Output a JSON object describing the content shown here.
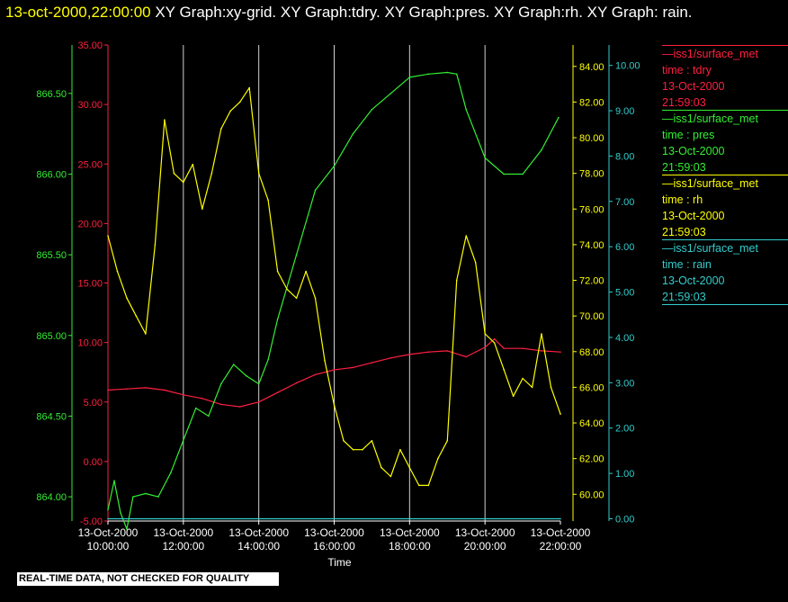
{
  "header": {
    "timestamp": "13-oct-2000,22:00:00",
    "graphs": "  XY Graph:xy-grid.  XY Graph:tdry.  XY Graph:pres.  XY Graph:rh.  XY Graph: rain."
  },
  "notice": "REAL-TIME DATA, NOT CHECKED FOR QUALITY",
  "legend": [
    {
      "line1": "—iss1/surface_met",
      "line2": "time : tdry",
      "line3": "13-Oct-2000",
      "line4": "21:59:03",
      "color": "#ff2040"
    },
    {
      "line1": "—iss1/surface_met",
      "line2": "time : pres",
      "line3": "13-Oct-2000",
      "line4": "21:59:03",
      "color": "#33ee33"
    },
    {
      "line1": "—iss1/surface_met",
      "line2": "time : rh",
      "line3": "13-Oct-2000",
      "line4": "21:59:03",
      "color": "#ffff00"
    },
    {
      "line1": "—iss1/surface_met",
      "line2": "time : rain",
      "line3": "13-Oct-2000",
      "line4": "21:59:03",
      "color": "#33cccc"
    }
  ],
  "chart_data": {
    "type": "line",
    "xlabel": "Time",
    "x_ticks": [
      {
        "d": "13-Oct-2000",
        "t": "10:00:00"
      },
      {
        "d": "13-Oct-2000",
        "t": "12:00:00"
      },
      {
        "d": "13-Oct-2000",
        "t": "14:00:00"
      },
      {
        "d": "13-Oct-2000",
        "t": "16:00:00"
      },
      {
        "d": "13-Oct-2000",
        "t": "18:00:00"
      },
      {
        "d": "13-Oct-2000",
        "t": "20:00:00"
      },
      {
        "d": "13-Oct-2000",
        "t": "22:00:00"
      }
    ],
    "xlim": [
      "2000-10-13 10:00:00",
      "2000-10-13 22:00:00"
    ],
    "grid": "vertical lines at x ticks",
    "axes": {
      "tdry": {
        "color": "#ff2040",
        "ylim": [
          -5,
          35
        ],
        "ticks": [
          "-5.00",
          "0.00",
          "5.00",
          "10.00",
          "15.00",
          "20.00",
          "25.00",
          "30.00",
          "35.00"
        ]
      },
      "pres": {
        "color": "#33ee33",
        "ylim": [
          863.85,
          866.8
        ],
        "ticks": [
          "864.00",
          "864.50",
          "865.00",
          "865.50",
          "866.00",
          "866.50"
        ]
      },
      "rh": {
        "color": "#ffff00",
        "ylim": [
          58.5,
          85.2
        ],
        "ticks": [
          "60.00",
          "62.00",
          "64.00",
          "66.00",
          "68.00",
          "70.00",
          "72.00",
          "74.00",
          "76.00",
          "78.00",
          "80.00",
          "82.00",
          "84.00"
        ]
      },
      "rain": {
        "color": "#33cccc",
        "ylim": [
          -0.05,
          10.45
        ],
        "ticks": [
          "0.00",
          "1.00",
          "2.00",
          "3.00",
          "4.00",
          "5.00",
          "6.00",
          "7.00",
          "8.00",
          "9.00",
          "10.00"
        ]
      }
    },
    "series": [
      {
        "name": "tdry",
        "color": "#ff2040",
        "x": [
          "10:00",
          "10:30",
          "11:00",
          "11:30",
          "12:00",
          "12:30",
          "13:00",
          "13:30",
          "14:00",
          "14:30",
          "15:00",
          "15:30",
          "16:00",
          "16:30",
          "17:00",
          "17:30",
          "18:00",
          "18:30",
          "19:00",
          "19:30",
          "20:00",
          "20:15",
          "20:30",
          "21:00",
          "21:30",
          "22:00"
        ],
        "values": [
          6.0,
          6.1,
          6.2,
          6.0,
          5.6,
          5.3,
          4.8,
          4.6,
          5.0,
          5.8,
          6.6,
          7.3,
          7.7,
          7.9,
          8.3,
          8.7,
          9.0,
          9.2,
          9.3,
          8.8,
          9.6,
          10.3,
          9.5,
          9.5,
          9.3,
          9.2
        ]
      },
      {
        "name": "pres",
        "color": "#33ee33",
        "x": [
          "10:00",
          "10:10",
          "10:20",
          "10:30",
          "10:40",
          "11:00",
          "11:20",
          "11:40",
          "12:00",
          "12:20",
          "12:40",
          "13:00",
          "13:20",
          "13:40",
          "14:00",
          "14:15",
          "14:30",
          "15:00",
          "15:30",
          "16:00",
          "16:30",
          "17:00",
          "17:30",
          "18:00",
          "18:30",
          "19:00",
          "19:15",
          "19:30",
          "20:00",
          "20:30",
          "21:00",
          "21:30",
          "21:57"
        ],
        "values": [
          863.92,
          864.1,
          863.9,
          863.8,
          864.0,
          864.02,
          864.0,
          864.15,
          864.35,
          864.55,
          864.5,
          864.7,
          864.82,
          864.75,
          864.7,
          864.85,
          865.1,
          865.5,
          865.9,
          866.05,
          866.25,
          866.4,
          866.5,
          866.6,
          866.62,
          866.63,
          866.62,
          866.4,
          866.1,
          866.0,
          866.0,
          866.15,
          866.35
        ]
      },
      {
        "name": "rh",
        "color": "#ffff00",
        "x": [
          "10:00",
          "10:15",
          "10:30",
          "10:45",
          "11:00",
          "11:15",
          "11:30",
          "11:45",
          "12:00",
          "12:15",
          "12:30",
          "12:45",
          "13:00",
          "13:15",
          "13:30",
          "13:45",
          "14:00",
          "14:15",
          "14:30",
          "14:45",
          "15:00",
          "15:15",
          "15:30",
          "15:45",
          "16:00",
          "16:15",
          "16:30",
          "16:45",
          "17:00",
          "17:15",
          "17:30",
          "17:45",
          "18:00",
          "18:15",
          "18:30",
          "18:45",
          "19:00",
          "19:15",
          "19:30",
          "19:45",
          "20:00",
          "20:15",
          "20:30",
          "20:45",
          "21:00",
          "21:15",
          "21:30",
          "21:45",
          "22:00"
        ],
        "values": [
          74.5,
          72.5,
          71.0,
          70.0,
          69.0,
          74.0,
          81.0,
          78.0,
          77.5,
          78.5,
          76.0,
          78.0,
          80.5,
          81.5,
          82.0,
          82.8,
          78.0,
          76.5,
          72.5,
          71.5,
          71.0,
          72.5,
          71.0,
          67.5,
          65.0,
          63.0,
          62.5,
          62.5,
          63.0,
          61.5,
          61.0,
          62.5,
          61.5,
          60.5,
          60.5,
          62.0,
          63.0,
          72.0,
          74.5,
          73.0,
          69.0,
          68.5,
          67.0,
          65.5,
          66.5,
          66.0,
          69.0,
          66.0,
          64.5
        ]
      },
      {
        "name": "rain",
        "color": "#33cccc",
        "x": [
          "10:00",
          "22:00"
        ],
        "values": [
          0.0,
          0.0
        ]
      }
    ]
  }
}
